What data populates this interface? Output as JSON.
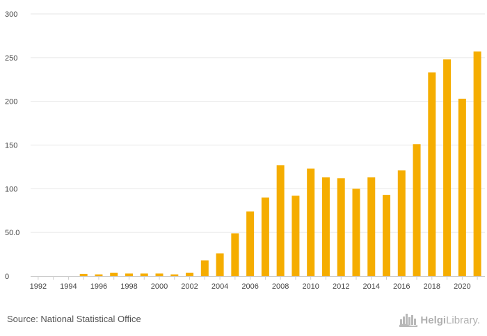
{
  "chart_data": {
    "type": "bar",
    "title": "",
    "xlabel": "",
    "ylabel": "",
    "x": [
      1992,
      1993,
      1994,
      1995,
      1996,
      1997,
      1998,
      1999,
      2000,
      2001,
      2002,
      2003,
      2004,
      2005,
      2006,
      2007,
      2008,
      2009,
      2010,
      2011,
      2012,
      2013,
      2014,
      2015,
      2016,
      2017,
      2018,
      2019,
      2020,
      2021
    ],
    "values": [
      0,
      0,
      0,
      2.5,
      2,
      4,
      3,
      3,
      3,
      2,
      4,
      18,
      26,
      49,
      74,
      90,
      127,
      92,
      123,
      113,
      112,
      100,
      113,
      93,
      121,
      151,
      233,
      248,
      203,
      257
    ],
    "xticks": [
      "1992",
      "1994",
      "1996",
      "1998",
      "2000",
      "2002",
      "2004",
      "2006",
      "2008",
      "2010",
      "2012",
      "2014",
      "2016",
      "2018",
      "2020"
    ],
    "yticks": [
      {
        "value": 0,
        "label": "0"
      },
      {
        "value": 50,
        "label": "50.0"
      },
      {
        "value": 100,
        "label": "100"
      },
      {
        "value": 150,
        "label": "150"
      },
      {
        "value": 200,
        "label": "200"
      },
      {
        "value": 250,
        "label": "250"
      },
      {
        "value": 300,
        "label": "300"
      }
    ],
    "ylim": [
      0,
      300
    ],
    "grid": true,
    "legend": "none",
    "colors": {
      "bar": "#f5ad00",
      "grid": "#e6e6e6",
      "axis": "#cccccc"
    }
  },
  "footer": {
    "source": "Source: National Statistical Office",
    "brand_bold": "Helgi",
    "brand_rest": "Library."
  },
  "icons": {
    "brand_logo": "city-skyline-icon"
  }
}
